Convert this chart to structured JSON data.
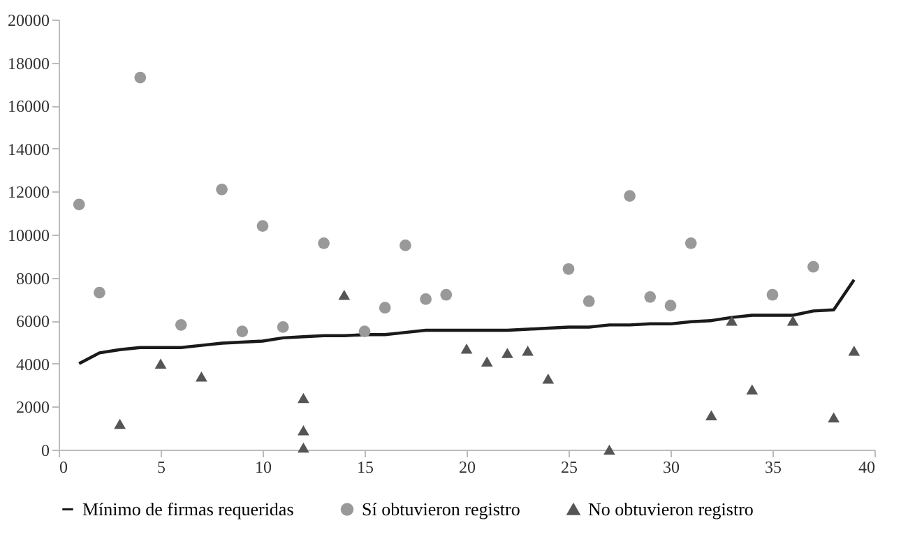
{
  "chart_data": {
    "type": "scatter",
    "xlim": [
      0,
      40
    ],
    "xticks": [
      0,
      5,
      10,
      15,
      20,
      25,
      30,
      35,
      40
    ],
    "ylim": [
      0,
      20000
    ],
    "yticks": [
      0,
      2000,
      4000,
      6000,
      8000,
      10000,
      12000,
      14000,
      16000,
      18000,
      20000
    ],
    "grid": false,
    "legend": "bottom",
    "series": [
      {
        "name": "Mínimo de firmas requeridas",
        "type": "line",
        "color": "#1a1a1a",
        "marker": "none",
        "line_style": "solid",
        "x": [
          1,
          2,
          3,
          4,
          5,
          6,
          7,
          8,
          9,
          10,
          11,
          12,
          13,
          14,
          15,
          16,
          17,
          18,
          19,
          20,
          21,
          22,
          23,
          24,
          25,
          26,
          27,
          28,
          29,
          30,
          31,
          32,
          33,
          34,
          35,
          36,
          37,
          38,
          39
        ],
        "values": [
          4000,
          4500,
          4650,
          4750,
          4750,
          4750,
          4850,
          4950,
          5000,
          5050,
          5200,
          5250,
          5300,
          5300,
          5350,
          5350,
          5450,
          5550,
          5550,
          5550,
          5550,
          5550,
          5600,
          5650,
          5700,
          5700,
          5800,
          5800,
          5850,
          5850,
          5950,
          6000,
          6150,
          6250,
          6250,
          6250,
          6450,
          6500,
          7900
        ]
      },
      {
        "name": "Sí obtuvieron registro",
        "color": "#999999",
        "marker": "circle",
        "x": [
          1,
          2,
          4,
          6,
          8,
          9,
          10,
          11,
          13,
          15,
          16,
          17,
          18,
          19,
          25,
          26,
          28,
          29,
          30,
          31,
          35,
          37
        ],
        "values": [
          11400,
          7300,
          17300,
          5800,
          12100,
          5500,
          10400,
          5700,
          9600,
          5500,
          6600,
          9500,
          7000,
          7200,
          8400,
          6900,
          11800,
          7100,
          6700,
          9600,
          7200,
          8500
        ]
      },
      {
        "name": "No obtuvieron registro",
        "color": "#555555",
        "marker": "triangle",
        "x": [
          3,
          5,
          7,
          12,
          12,
          12,
          14,
          20,
          21,
          22,
          23,
          24,
          27,
          32,
          33,
          34,
          36,
          38,
          39
        ],
        "values": [
          1200,
          4000,
          3400,
          2400,
          900,
          100,
          7200,
          4700,
          4100,
          4500,
          4600,
          3300,
          0,
          1600,
          6000,
          2800,
          6000,
          1500,
          4600
        ]
      }
    ]
  }
}
